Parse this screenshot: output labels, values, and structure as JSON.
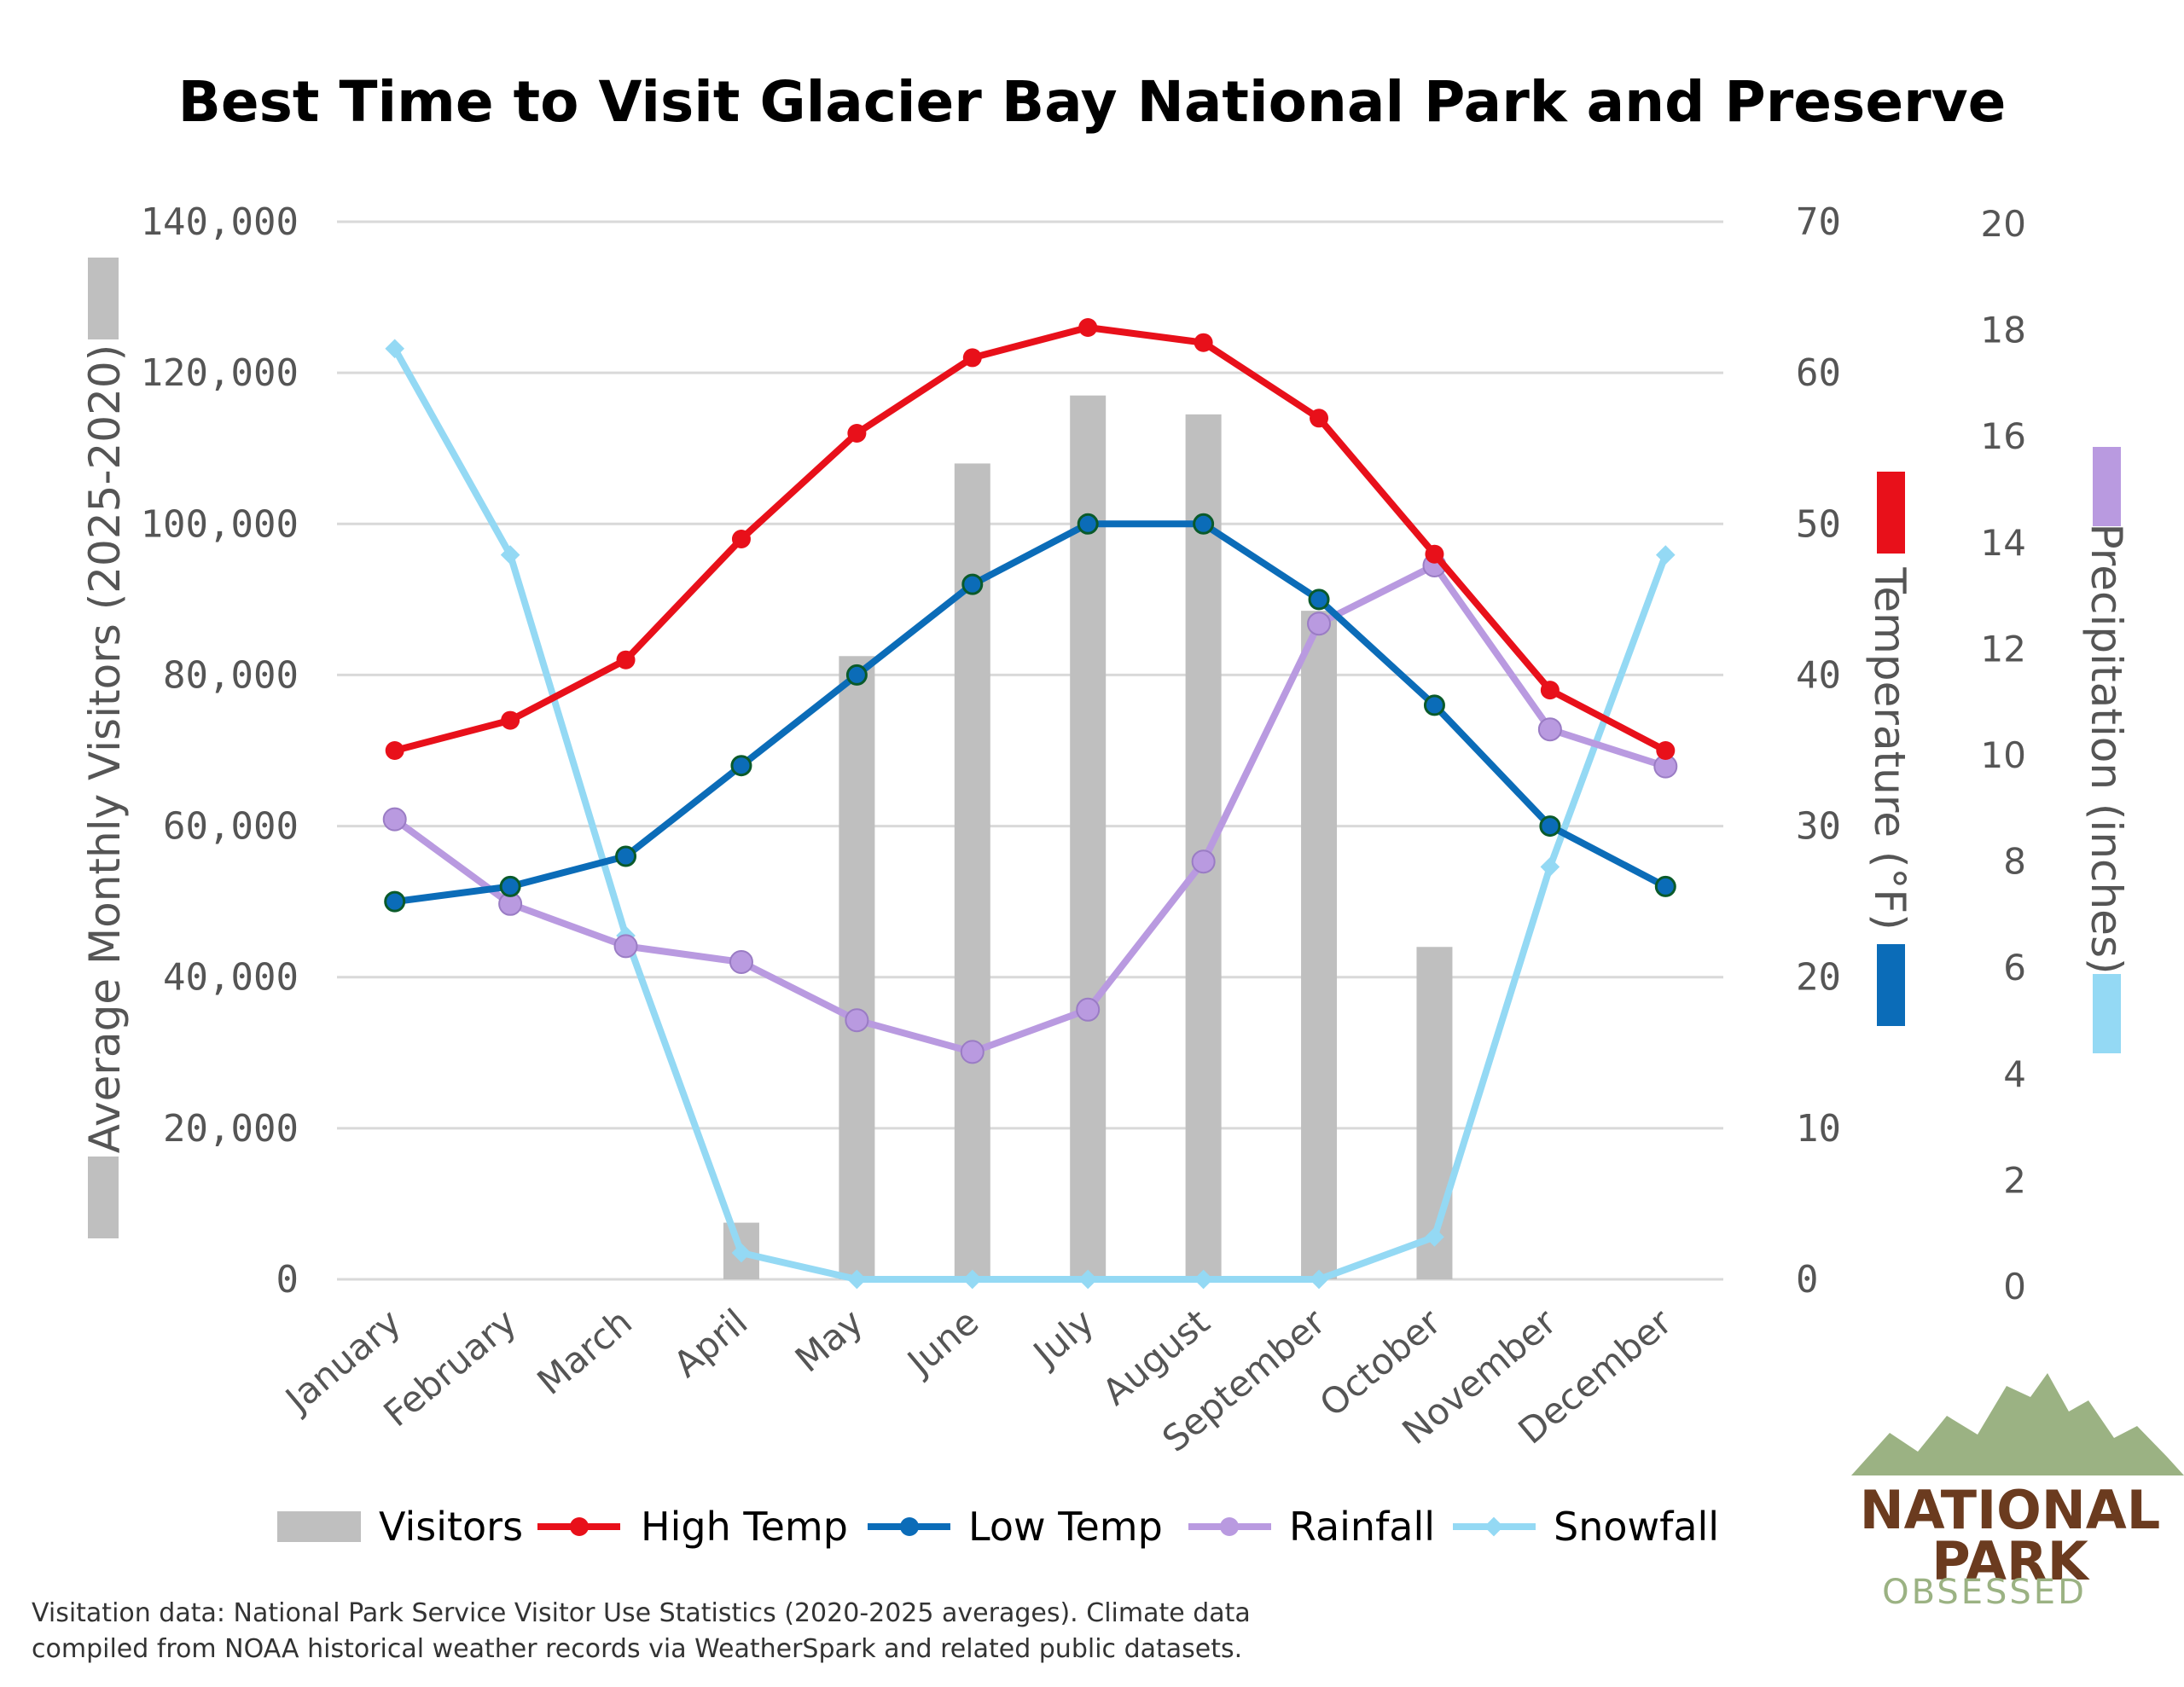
{
  "chart_data": {
    "type": "bar+line",
    "title": "Best Time to Visit Glacier Bay National Park and Preserve",
    "categories": [
      "January",
      "February",
      "March",
      "April",
      "May",
      "June",
      "July",
      "August",
      "September",
      "October",
      "November",
      "December"
    ],
    "left_axis": {
      "label": "Average Monthly Visitors (2025-2020)",
      "ylim": [
        0,
        140000
      ],
      "ticks": [
        "0",
        "20,000",
        "40,000",
        "60,000",
        "80,000",
        "100,000",
        "120,000",
        "140,000"
      ]
    },
    "right_axis_temperature": {
      "label": "Temperature (°F)",
      "ylim": [
        0,
        70
      ],
      "ticks": [
        "0",
        "10",
        "20",
        "30",
        "40",
        "50",
        "60",
        "70"
      ]
    },
    "right_axis_precipitation": {
      "label": "Precipitation (inches)",
      "ylim": [
        0,
        20
      ],
      "ticks": [
        "0",
        "2",
        "4",
        "6",
        "8",
        "10",
        "12",
        "14",
        "16",
        "18",
        "20"
      ]
    },
    "series": [
      {
        "name": "Visitors",
        "kind": "bar",
        "axis": "visitors",
        "color": "#bfbfbf",
        "values": [
          0,
          0,
          0,
          7500,
          82500,
          108000,
          117000,
          114500,
          88500,
          44000,
          0,
          0
        ]
      },
      {
        "name": "High Temp",
        "kind": "line",
        "axis": "temperature",
        "color": "#e8101a",
        "values": [
          35,
          37,
          41,
          49,
          56,
          61,
          63,
          62,
          57,
          48,
          39,
          35
        ]
      },
      {
        "name": "Low Temp",
        "kind": "line",
        "axis": "temperature",
        "color": "#0b6cb8",
        "values": [
          25,
          26,
          28,
          34,
          40,
          46,
          50,
          50,
          45,
          38,
          30,
          26
        ]
      },
      {
        "name": "Rainfall",
        "kind": "line",
        "axis": "precipitation",
        "color": "#b99ae0",
        "values": [
          8.7,
          7.1,
          6.3,
          6.0,
          4.9,
          4.3,
          5.1,
          7.9,
          12.4,
          13.5,
          10.4,
          9.7
        ]
      },
      {
        "name": "Snowfall",
        "kind": "line",
        "axis": "precipitation",
        "color": "#94d9f4",
        "values": [
          17.6,
          13.7,
          6.5,
          0.5,
          0,
          0,
          0,
          0,
          0,
          0.8,
          7.8,
          13.7
        ]
      }
    ],
    "legend": [
      "Visitors",
      "High Temp",
      "Low Temp",
      "Rainfall",
      "Snowfall"
    ],
    "legend_position": "bottom",
    "grid": true
  },
  "source_note": {
    "line1": "Visitation data: National Park Service Visitor Use Statistics (2020-2025 averages). Climate data",
    "line2": "compiled from NOAA historical weather records via WeatherSpark and related public datasets."
  },
  "logo": {
    "line1": "NATIONAL",
    "line2": "PARK",
    "line3": "OBSESSED"
  }
}
